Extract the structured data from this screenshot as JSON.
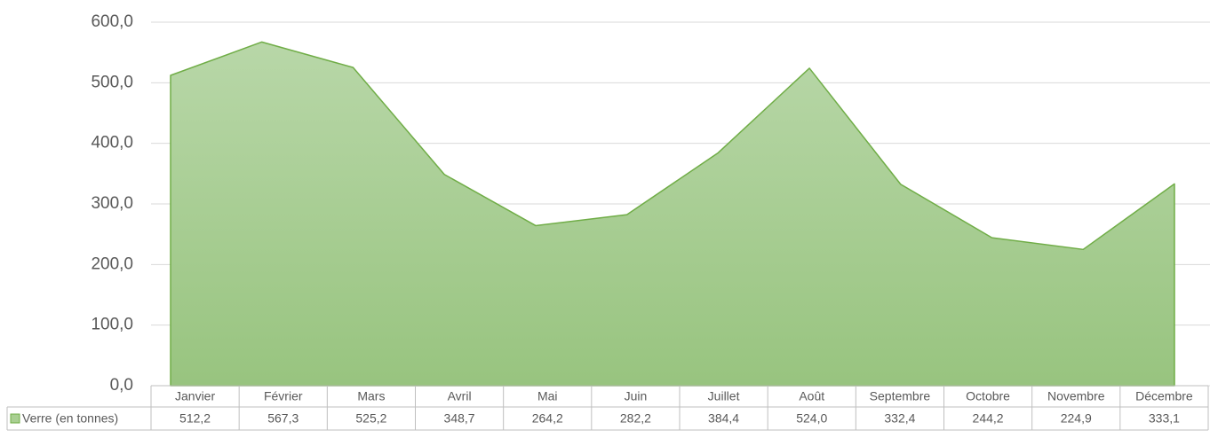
{
  "chart_data": {
    "type": "area",
    "categories": [
      "Janvier",
      "Février",
      "Mars",
      "Avril",
      "Mai",
      "Juin",
      "Juillet",
      "Août",
      "Septembre",
      "Octobre",
      "Novembre",
      "Décembre"
    ],
    "series": [
      {
        "name": "Verre (en tonnes)",
        "color": "#70ad47",
        "values": [
          512.2,
          567.3,
          525.2,
          348.7,
          264.2,
          282.2,
          384.4,
          524.0,
          332.4,
          244.2,
          224.9,
          333.1
        ],
        "value_labels": [
          "512,2",
          "567,3",
          "525,2",
          "348,7",
          "264,2",
          "282,2",
          "384,4",
          "524,0",
          "332,4",
          "244,2",
          "224,9",
          "333,1"
        ]
      }
    ],
    "ylim": [
      0,
      600
    ],
    "yticks": [
      {
        "value": 0,
        "label": "0,0"
      },
      {
        "value": 100,
        "label": "100,0"
      },
      {
        "value": 200,
        "label": "200,0"
      },
      {
        "value": 300,
        "label": "300,0"
      },
      {
        "value": 400,
        "label": "400,0"
      },
      {
        "value": 500,
        "label": "500,0"
      },
      {
        "value": 600,
        "label": "600,0"
      }
    ],
    "grid": true
  }
}
